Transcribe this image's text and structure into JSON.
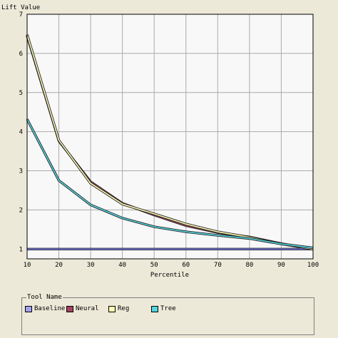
{
  "chart_data": {
    "type": "line",
    "ylabel": "Lift Value",
    "xlabel": "Percentile",
    "x": [
      10,
      20,
      30,
      40,
      50,
      60,
      70,
      80,
      90,
      100
    ],
    "xlim": [
      10,
      100
    ],
    "ylim": [
      0.75,
      7
    ],
    "yticks": [
      1,
      2,
      3,
      4,
      5,
      6,
      7
    ],
    "grid": true,
    "series": [
      {
        "name": "Baseline",
        "color": "#7b7be6",
        "values": [
          1,
          1,
          1,
          1,
          1,
          1,
          1,
          1,
          1,
          1
        ]
      },
      {
        "name": "Neural",
        "color": "#a3445f",
        "values": [
          6.45,
          3.76,
          2.72,
          2.17,
          1.87,
          1.6,
          1.42,
          1.31,
          1.14,
          1.0
        ]
      },
      {
        "name": "Reg",
        "color": "#fffcb4",
        "values": [
          6.48,
          3.78,
          2.68,
          2.15,
          1.9,
          1.64,
          1.44,
          1.3,
          1.13,
          1.0
        ]
      },
      {
        "name": "Tree",
        "color": "#55d4e0",
        "values": [
          4.32,
          2.75,
          2.13,
          1.79,
          1.57,
          1.44,
          1.35,
          1.27,
          1.13,
          1.03
        ]
      }
    ]
  },
  "legend": {
    "title": "Tool Name",
    "items": [
      {
        "label": "Baseline",
        "color": "#a2a2ee"
      },
      {
        "label": "Neural",
        "color": "#a3445f"
      },
      {
        "label": "Reg",
        "color": "#fffcb4"
      },
      {
        "label": "Tree",
        "color": "#55d4e0"
      }
    ]
  }
}
